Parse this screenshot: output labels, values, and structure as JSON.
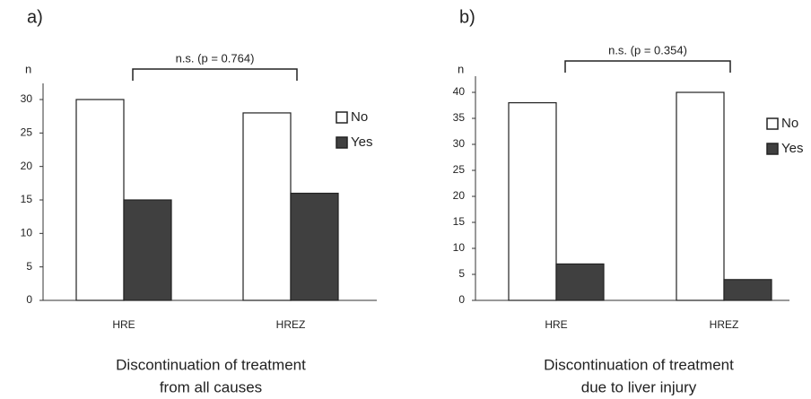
{
  "chart_data": [
    {
      "type": "bar",
      "panel_label": "a)",
      "title": [
        "Discontinuation of treatment",
        "from all causes"
      ],
      "y_label": "n",
      "annotation": "n.s. (p = 0.764)",
      "categories": [
        "HRE",
        "HREZ"
      ],
      "series": [
        {
          "name": "No",
          "color": "#ffffff",
          "values": [
            30,
            28
          ]
        },
        {
          "name": "Yes",
          "color": "#404040",
          "values": [
            15,
            16
          ]
        }
      ],
      "ylim": [
        0,
        30
      ],
      "yticks": [
        0,
        5,
        10,
        15,
        20,
        25,
        30
      ]
    },
    {
      "type": "bar",
      "panel_label": "b)",
      "title": [
        "Discontinuation of treatment",
        "due to liver injury"
      ],
      "y_label": "n",
      "annotation": "n.s. (p = 0.354)",
      "categories": [
        "HRE",
        "HREZ"
      ],
      "series": [
        {
          "name": "No",
          "color": "#ffffff",
          "values": [
            38,
            40
          ]
        },
        {
          "name": "Yes",
          "color": "#404040",
          "values": [
            7,
            4
          ]
        }
      ],
      "ylim": [
        0,
        40
      ],
      "yticks": [
        0,
        5,
        10,
        15,
        20,
        25,
        30,
        35,
        40
      ]
    }
  ]
}
